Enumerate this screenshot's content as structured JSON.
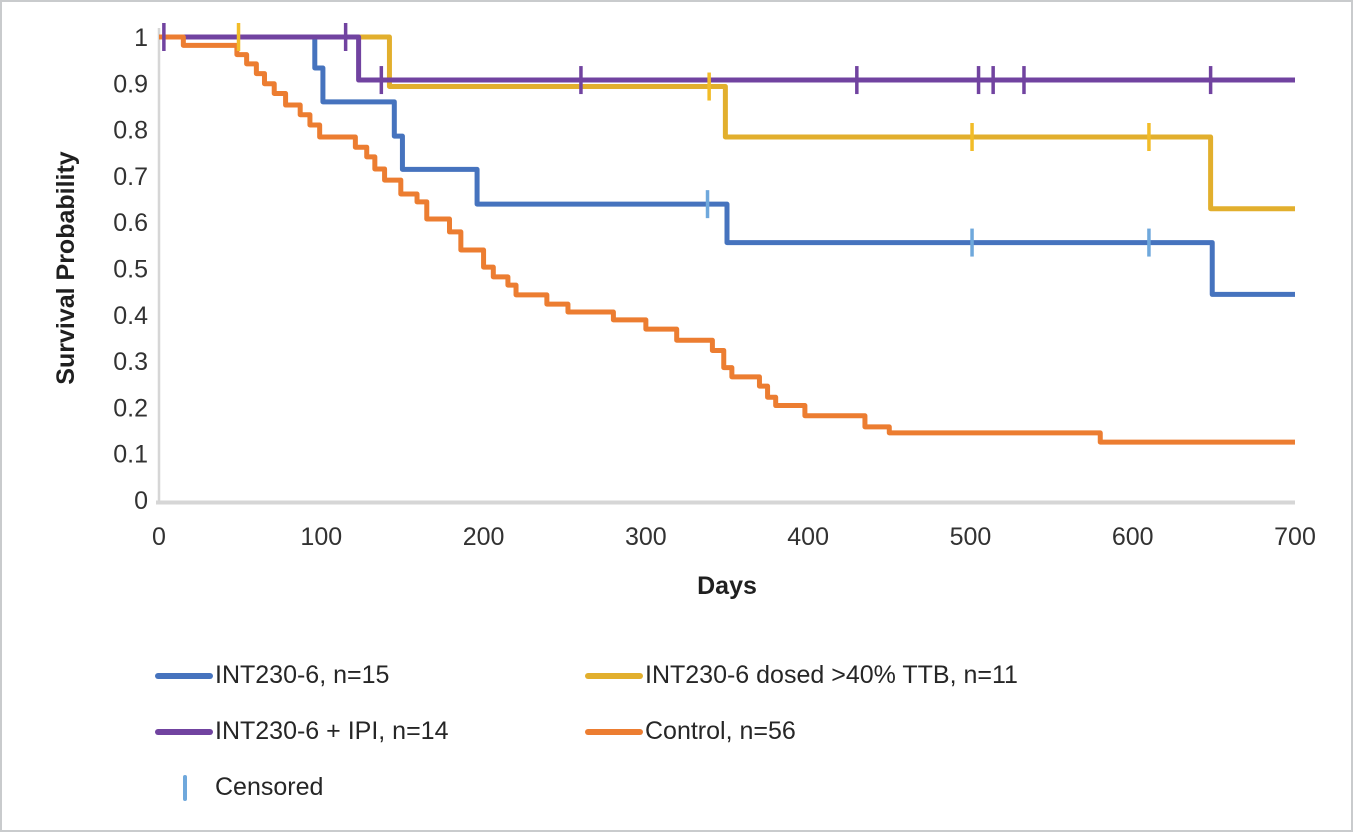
{
  "chart_data": {
    "type": "line",
    "subtype": "kaplan-meier-step",
    "title": "",
    "xlabel": "Days",
    "ylabel": "Survival Probability",
    "xlim": [
      0,
      700
    ],
    "ylim": [
      0,
      1
    ],
    "x_ticks": [
      "0",
      "100",
      "200",
      "300",
      "400",
      "500",
      "600",
      "700"
    ],
    "y_ticks": [
      "0",
      "0.1",
      "0.2",
      "0.3",
      "0.4",
      "0.5",
      "0.6",
      "0.7",
      "0.8",
      "0.9",
      "1"
    ],
    "grid": false,
    "legend_position": "bottom",
    "axis_color": "#d6d6d6",
    "tick_text_color": "#323232",
    "series": [
      {
        "name": "INT230-6, n=15",
        "color": "#4673BE",
        "censor_color": "#6FA8DC",
        "steps": [
          [
            0,
            1
          ],
          [
            96,
            0.933
          ],
          [
            101,
            0.86
          ],
          [
            145,
            0.786
          ],
          [
            150,
            0.714
          ],
          [
            196,
            0.639
          ],
          [
            350,
            0.556
          ],
          [
            649,
            0.444
          ],
          [
            700,
            0.444
          ]
        ],
        "censored": [
          [
            338,
            0.639
          ],
          [
            501,
            0.556
          ],
          [
            610,
            0.556
          ]
        ]
      },
      {
        "name": "INT230-6 dosed >40% TTB, n=11",
        "color": "#E2AF2D",
        "censor_color": "#F2BC28",
        "steps": [
          [
            0,
            1
          ],
          [
            142,
            0.893
          ],
          [
            349,
            0.784
          ],
          [
            648,
            0.629
          ],
          [
            700,
            0.629
          ]
        ],
        "censored": [
          [
            49,
            1
          ],
          [
            339,
            0.893
          ],
          [
            501,
            0.784
          ],
          [
            610,
            0.784
          ]
        ]
      },
      {
        "name": "INT230-6 + IPI, n=14",
        "color": "#7143A0",
        "censor_color": "#7143A0",
        "steps": [
          [
            0,
            1
          ],
          [
            123,
            0.907
          ],
          [
            700,
            0.907
          ]
        ],
        "censored": [
          [
            3,
            1
          ],
          [
            115,
            1
          ],
          [
            137,
            0.907
          ],
          [
            260,
            0.907
          ],
          [
            430,
            0.907
          ],
          [
            505,
            0.907
          ],
          [
            514,
            0.907
          ],
          [
            533,
            0.907
          ],
          [
            648,
            0.907
          ]
        ]
      },
      {
        "name": "Control, n=56",
        "color": "#EC7D31",
        "censor_color": "#EC7D31",
        "steps": [
          [
            0,
            1
          ],
          [
            15,
            0.982
          ],
          [
            48,
            0.962
          ],
          [
            54,
            0.942
          ],
          [
            60,
            0.921
          ],
          [
            65,
            0.899
          ],
          [
            71,
            0.878
          ],
          [
            78,
            0.853
          ],
          [
            87,
            0.832
          ],
          [
            93,
            0.81
          ],
          [
            99,
            0.784
          ],
          [
            121,
            0.762
          ],
          [
            128,
            0.741
          ],
          [
            133,
            0.715
          ],
          [
            139,
            0.691
          ],
          [
            149,
            0.661
          ],
          [
            159,
            0.644
          ],
          [
            165,
            0.607
          ],
          [
            179,
            0.579
          ],
          [
            186,
            0.54
          ],
          [
            200,
            0.503
          ],
          [
            206,
            0.482
          ],
          [
            215,
            0.464
          ],
          [
            220,
            0.443
          ],
          [
            239,
            0.423
          ],
          [
            252,
            0.406
          ],
          [
            280,
            0.389
          ],
          [
            300,
            0.369
          ],
          [
            319,
            0.345
          ],
          [
            341,
            0.323
          ],
          [
            348,
            0.286
          ],
          [
            353,
            0.266
          ],
          [
            370,
            0.246
          ],
          [
            375,
            0.222
          ],
          [
            380,
            0.204
          ],
          [
            398,
            0.182
          ],
          [
            435,
            0.158
          ],
          [
            450,
            0.145
          ],
          [
            580,
            0.125
          ],
          [
            700,
            0.125
          ]
        ],
        "censored": []
      }
    ],
    "legend": [
      {
        "label": "INT230-6, n=15",
        "swatch": "line",
        "color": "#4673BE"
      },
      {
        "label": "INT230-6 dosed >40% TTB, n=11",
        "swatch": "line",
        "color": "#E2AF2D"
      },
      {
        "label": "INT230-6 + IPI, n=14",
        "swatch": "line",
        "color": "#7143A0"
      },
      {
        "label": "Control, n=56",
        "swatch": "line",
        "color": "#EC7D31"
      },
      {
        "label": "Censored",
        "swatch": "tick",
        "color": "#6FA8DC"
      }
    ]
  }
}
